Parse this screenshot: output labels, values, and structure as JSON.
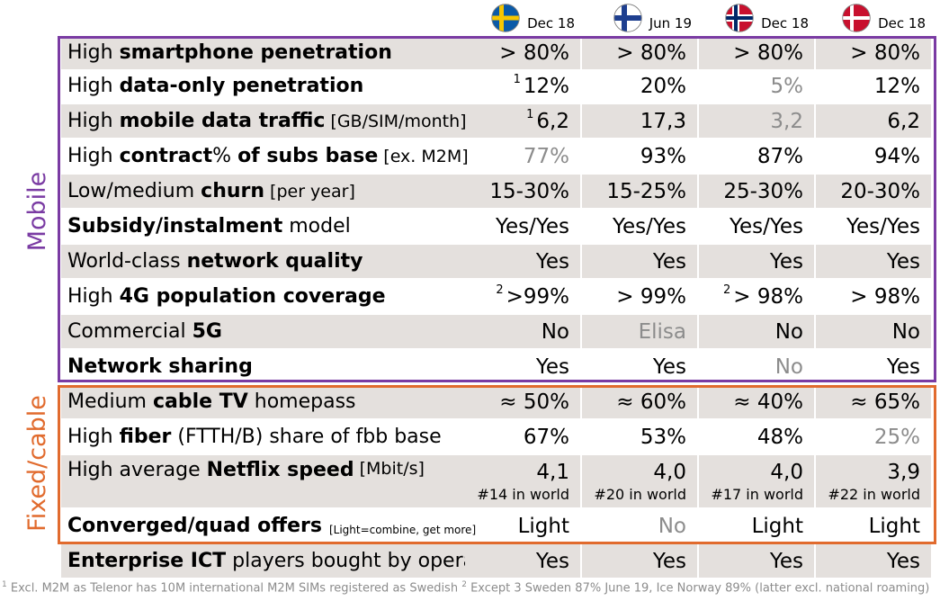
{
  "countries": [
    {
      "id": "se",
      "date": "Dec 18"
    },
    {
      "id": "fi",
      "date": "Jun 19"
    },
    {
      "id": "no",
      "date": "Dec 18"
    },
    {
      "id": "dk",
      "date": "Dec 18"
    }
  ],
  "colors": {
    "mobile_border": "#7a3ba3",
    "fixed_border": "#e16b2e",
    "row_shade": "#e4e0dd",
    "grey_value": "#8c8c8c",
    "flag_se_blue": "#0a5aa8",
    "flag_se_yellow": "#f7c600",
    "flag_fi_blue": "#1e3f8f",
    "flag_no_red": "#c8102e",
    "flag_no_blue": "#002868",
    "flag_dk_red": "#c8102e"
  },
  "sections": {
    "mobile": "Mobile",
    "fixed": "Fixed/cable"
  },
  "rows": [
    {
      "label": [
        {
          "t": "High "
        },
        {
          "t": "smartphone penetration",
          "b": true
        }
      ],
      "values": [
        {
          "t": "> 80%"
        },
        {
          "t": "> 80%"
        },
        {
          "t": "> 80%"
        },
        {
          "t": "> 80%"
        }
      ]
    },
    {
      "label": [
        {
          "t": "High "
        },
        {
          "t": "data-only penetration",
          "b": true
        }
      ],
      "values": [
        {
          "sup": "1",
          "t": "12%"
        },
        {
          "t": "20%"
        },
        {
          "t": "5%",
          "grey": true
        },
        {
          "t": "12%"
        }
      ]
    },
    {
      "label": [
        {
          "t": "High "
        },
        {
          "t": "mobile data traffic",
          "b": true
        }
      ],
      "unit": "[GB/SIM/month]",
      "values": [
        {
          "sup": "1",
          "t": "6,2"
        },
        {
          "t": "17,3"
        },
        {
          "t": "3,2",
          "grey": true
        },
        {
          "t": "6,2"
        }
      ]
    },
    {
      "label": [
        {
          "t": "High "
        },
        {
          "t": "contract",
          "b": true
        },
        {
          "t": "% "
        },
        {
          "t": "of subs base",
          "b": true
        }
      ],
      "unit": "[ex. M2M]",
      "values": [
        {
          "t": "77%",
          "grey": true
        },
        {
          "t": "93%"
        },
        {
          "t": "87%"
        },
        {
          "t": "94%"
        }
      ]
    },
    {
      "label": [
        {
          "t": "Low/medium "
        },
        {
          "t": "churn",
          "b": true
        }
      ],
      "unit": "[per year]",
      "values": [
        {
          "t": "15-30%"
        },
        {
          "t": "15-25%"
        },
        {
          "t": "25-30%"
        },
        {
          "t": "20-30%"
        }
      ]
    },
    {
      "label": [
        {
          "t": "Subsidy/instalment",
          "b": true
        },
        {
          "t": " model"
        }
      ],
      "values": [
        {
          "t": "Yes/Yes"
        },
        {
          "t": "Yes/Yes"
        },
        {
          "t": "Yes/Yes"
        },
        {
          "t": "Yes/Yes"
        }
      ]
    },
    {
      "label": [
        {
          "t": "World-class "
        },
        {
          "t": "network quality",
          "b": true
        }
      ],
      "values": [
        {
          "t": "Yes"
        },
        {
          "t": "Yes"
        },
        {
          "t": "Yes"
        },
        {
          "t": "Yes"
        }
      ]
    },
    {
      "label": [
        {
          "t": "High "
        },
        {
          "t": "4G population coverage",
          "b": true
        }
      ],
      "values": [
        {
          "sup": "2",
          "t": ">99%"
        },
        {
          "t": "> 99%"
        },
        {
          "sup": "2",
          "t": "> 98%"
        },
        {
          "t": "> 98%"
        }
      ]
    },
    {
      "label": [
        {
          "t": "Commercial "
        },
        {
          "t": "5G",
          "b": true
        }
      ],
      "values": [
        {
          "t": "No"
        },
        {
          "t": "Elisa",
          "grey": true
        },
        {
          "t": "No"
        },
        {
          "t": "No"
        }
      ]
    },
    {
      "label": [
        {
          "t": "Network sharing",
          "b": true
        }
      ],
      "values": [
        {
          "t": "Yes"
        },
        {
          "t": "Yes"
        },
        {
          "t": "No",
          "grey": true
        },
        {
          "t": "Yes"
        }
      ]
    },
    {
      "label": [
        {
          "t": "Medium "
        },
        {
          "t": "cable TV",
          "b": true
        },
        {
          "t": " homepass"
        }
      ],
      "values": [
        {
          "t": "≈ 50%"
        },
        {
          "t": "≈ 60%"
        },
        {
          "t": "≈ 40%"
        },
        {
          "t": "≈ 65%"
        }
      ]
    },
    {
      "label": [
        {
          "t": "High "
        },
        {
          "t": "fiber",
          "b": true
        },
        {
          "t": " (FTTH/B) share of fbb base"
        }
      ],
      "values": [
        {
          "t": "67%"
        },
        {
          "t": "53%"
        },
        {
          "t": "48%"
        },
        {
          "t": "25%",
          "grey": true
        }
      ]
    },
    {
      "label": [
        {
          "t": "High average "
        },
        {
          "t": "Netflix speed",
          "b": true
        }
      ],
      "unit": "[Mbit/s]",
      "tall": true,
      "values": [
        {
          "t": "4,1",
          "sub": "#14 in world"
        },
        {
          "t": "4,0",
          "sub": "#20 in world"
        },
        {
          "t": "4,0",
          "sub": "#17 in world"
        },
        {
          "t": "3,9",
          "sub": "#22 in world"
        }
      ]
    },
    {
      "label": [
        {
          "t": "Converged/quad offers",
          "b": true
        }
      ],
      "unit": "[Light=combine, get more]",
      "unit_small": true,
      "values": [
        {
          "t": "Light"
        },
        {
          "t": "No",
          "grey": true
        },
        {
          "t": "Light"
        },
        {
          "t": "Light"
        }
      ]
    },
    {
      "label": [
        {
          "t": "Enterprise ICT",
          "b": true
        },
        {
          "t": " players bought by operators"
        }
      ],
      "values": [
        {
          "t": "Yes"
        },
        {
          "t": "Yes"
        },
        {
          "t": "Yes"
        },
        {
          "t": "Yes"
        }
      ]
    }
  ],
  "footnote": {
    "n1": "1",
    "t1": " Excl. M2M as Telenor has 10M international M2M SIMs registered as Swedish ",
    "n2": "2",
    "t2": " Except 3 Sweden 87% June 19, Ice Norway 89% (latter excl. national roaming)"
  }
}
